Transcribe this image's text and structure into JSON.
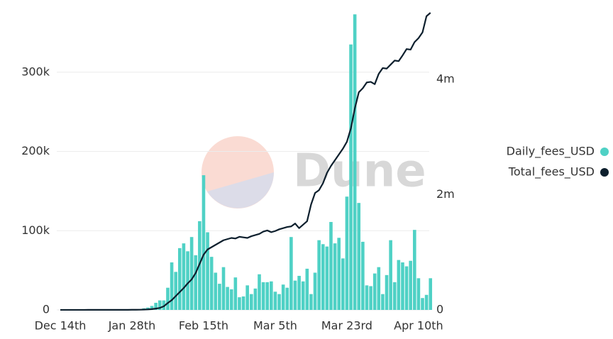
{
  "chart_data": {
    "type": "bar-line",
    "watermark": "Dune",
    "categories": [
      "Dec 14th",
      null,
      null,
      null,
      null,
      null,
      null,
      null,
      null,
      null,
      null,
      null,
      null,
      null,
      null,
      null,
      null,
      null,
      "Jan 28th",
      null,
      null,
      null,
      null,
      null,
      null,
      null,
      null,
      null,
      null,
      null,
      null,
      null,
      null,
      null,
      null,
      null,
      "Feb 15th",
      null,
      null,
      null,
      null,
      null,
      null,
      null,
      null,
      null,
      null,
      null,
      null,
      null,
      null,
      null,
      null,
      null,
      "Mar 5th",
      null,
      null,
      null,
      null,
      null,
      null,
      null,
      null,
      null,
      null,
      null,
      null,
      null,
      null,
      null,
      null,
      null,
      "Mar 23rd",
      null,
      null,
      null,
      null,
      null,
      null,
      null,
      null,
      null,
      null,
      null,
      null,
      null,
      null,
      null,
      null,
      null,
      "Apr 10th",
      null,
      null,
      null
    ],
    "series": [
      {
        "name": "Daily_fees_USD",
        "color": "#4fd1c5",
        "values": [
          0,
          0,
          0,
          0,
          0,
          0,
          0,
          0,
          0,
          0,
          0,
          0,
          0,
          0,
          0,
          0,
          0,
          0,
          0,
          0,
          1000,
          2000,
          3000,
          5000,
          9000,
          12000,
          12000,
          28000,
          60000,
          48000,
          78000,
          84000,
          74000,
          92000,
          69000,
          112000,
          170000,
          98000,
          67000,
          47000,
          33000,
          54000,
          29000,
          26000,
          41000,
          16000,
          17000,
          31000,
          20000,
          27000,
          45000,
          35000,
          35000,
          36000,
          23000,
          20000,
          32000,
          28000,
          92000,
          37000,
          43000,
          36000,
          52000,
          20000,
          47000,
          88000,
          83000,
          80000,
          111000,
          84000,
          91000,
          65000,
          143000,
          335000,
          373000,
          135000,
          86000,
          31000,
          30000,
          46000,
          54000,
          20000,
          44000,
          88000,
          35000,
          63000,
          60000,
          55000,
          62000,
          101000,
          40000,
          15000,
          19000,
          40000
        ]
      },
      {
        "name": "Total_fees_USD",
        "color": "#0d1f2d",
        "axis": "y2",
        "values": [
          1000,
          1000,
          1000,
          1000,
          1000,
          1000,
          1000,
          2000,
          2000,
          2000,
          2000,
          2000,
          2000,
          2000,
          2000,
          2000,
          2000,
          2000,
          3000,
          3000,
          4000,
          6000,
          9000,
          14000,
          23000,
          35000,
          63000,
          120000,
          170000,
          240000,
          310000,
          380000,
          460000,
          530000,
          640000,
          800000,
          960000,
          1050000,
          1090000,
          1130000,
          1170000,
          1210000,
          1230000,
          1250000,
          1240000,
          1270000,
          1260000,
          1250000,
          1280000,
          1300000,
          1320000,
          1360000,
          1380000,
          1350000,
          1370000,
          1400000,
          1420000,
          1440000,
          1450000,
          1500000,
          1420000,
          1480000,
          1540000,
          1830000,
          2030000,
          2080000,
          2200000,
          2380000,
          2500000,
          2600000,
          2700000,
          2800000,
          2920000,
          3150000,
          3500000,
          3780000,
          3850000,
          3950000,
          3960000,
          3920000,
          4100000,
          4200000,
          4190000,
          4260000,
          4330000,
          4320000,
          4420000,
          4530000,
          4520000,
          4650000,
          4720000,
          4820000,
          5100000,
          5160000
        ]
      }
    ],
    "ylim": [
      0,
      375000
    ],
    "yticks": [
      0,
      {
        "value": 100000,
        "label": "100k"
      },
      {
        "value": 200000,
        "label": "200k"
      },
      {
        "value": 300000,
        "label": "300k"
      }
    ],
    "y2lim": [
      0,
      5160000
    ],
    "y2ticks": [
      0,
      {
        "value": 2000000,
        "label": "2m"
      },
      {
        "value": 4000000,
        "label": "4m"
      }
    ],
    "grid": true,
    "legend": "right"
  }
}
